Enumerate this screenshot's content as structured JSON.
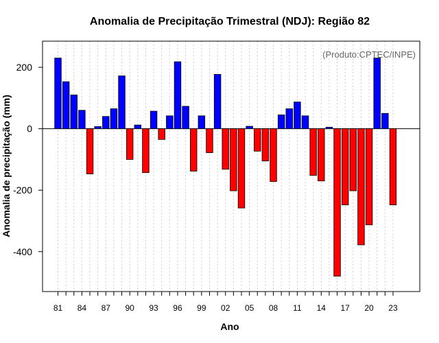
{
  "chart_data": {
    "type": "bar",
    "title": "Anomalia de Precipitação Trimestral (NDJ): Região 82",
    "xlabel": "Ano",
    "ylabel": "Anomalia de precipitação (mm)",
    "annotation": "(Produto:CPTEC/INPE)",
    "ylim": [
      -530,
      285
    ],
    "y_ticks": [
      200,
      0,
      -200,
      -400
    ],
    "grid": true,
    "colors": {
      "positive": "#0000ff",
      "negative": "#ff0000",
      "edge": "#000000",
      "grid": "#cccccc"
    },
    "x_tick_labels": [
      {
        "index": 0,
        "label": "81"
      },
      {
        "index": 3,
        "label": "84"
      },
      {
        "index": 6,
        "label": "87"
      },
      {
        "index": 9,
        "label": "90"
      },
      {
        "index": 12,
        "label": "93"
      },
      {
        "index": 15,
        "label": "96"
      },
      {
        "index": 18,
        "label": "99"
      },
      {
        "index": 21,
        "label": "02"
      },
      {
        "index": 24,
        "label": "05"
      },
      {
        "index": 27,
        "label": "08"
      },
      {
        "index": 30,
        "label": "11"
      },
      {
        "index": 33,
        "label": "14"
      },
      {
        "index": 36,
        "label": "17"
      },
      {
        "index": 39,
        "label": "20"
      },
      {
        "index": 42,
        "label": "23"
      }
    ],
    "values": [
      230,
      153,
      110,
      60,
      -147,
      7,
      40,
      65,
      172,
      -100,
      12,
      -143,
      57,
      -35,
      42,
      218,
      73,
      -138,
      42,
      -78,
      177,
      -132,
      -202,
      -258,
      8,
      -73,
      -105,
      -172,
      45,
      65,
      87,
      42,
      -152,
      -170,
      5,
      -480,
      -248,
      -202,
      -378,
      -313,
      230,
      50,
      -248
    ]
  }
}
